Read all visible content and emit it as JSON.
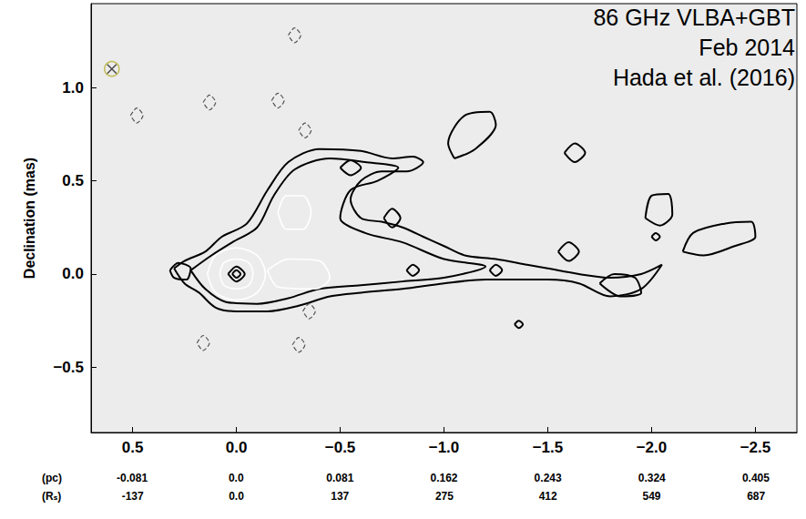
{
  "chart_data": {
    "type": "contour",
    "ylabel": "Declination (mas)",
    "annotations": [
      "86 GHz VLBA+GBT",
      "Feb 2014",
      "Hada et al. (2016)"
    ],
    "xlim": [
      0.7,
      -2.7
    ],
    "ylim": [
      -0.85,
      1.45
    ],
    "xticks": [
      {
        "value": 0.5,
        "label": "0.5"
      },
      {
        "value": 0,
        "label": "0.0"
      },
      {
        "value": -0.5,
        "label": "−0.5"
      },
      {
        "value": -1.0,
        "label": "−1.0"
      },
      {
        "value": -1.5,
        "label": "−1.5"
      },
      {
        "value": -2.0,
        "label": "−2.0"
      },
      {
        "value": -2.5,
        "label": "−2.5"
      }
    ],
    "yticks": [
      {
        "value": -0.5,
        "label": "−0.5"
      },
      {
        "value": 0,
        "label": "0.0"
      },
      {
        "value": 0.5,
        "label": "0.5"
      },
      {
        "value": 1.0,
        "label": "1.0"
      }
    ],
    "secondary_x_axes": [
      {
        "label": "(pc)",
        "xlim": [
          -0.113,
          0.437
        ],
        "ticks": [
          -0.081,
          {
            "value": 0,
            "label": "0.0"
          },
          0.081,
          0.162,
          0.243,
          0.324,
          0.405
        ]
      },
      {
        "label": "(Rₛ)",
        "xlim": [
          -192,
          741
        ],
        "ticks": [
          -137,
          {
            "value": 0,
            "label": "0.0"
          },
          137,
          275,
          412,
          549,
          687
        ]
      }
    ],
    "beam": {
      "x": 0.6,
      "y": 1.1
    },
    "series": [
      {
        "color": "#000000",
        "line_style": "solid",
        "values": [
          [
            0.3,
            0.03
          ],
          [
            0.25,
            0.07
          ],
          [
            0.15,
            0.12
          ],
          [
            0.07,
            0.2
          ],
          [
            -0.05,
            0.27
          ],
          [
            -0.15,
            0.45
          ],
          [
            -0.25,
            0.6
          ],
          [
            -0.4,
            0.67
          ],
          [
            -0.6,
            0.66
          ],
          [
            -0.75,
            0.62
          ],
          [
            -0.85,
            0.63
          ],
          [
            -0.9,
            0.6
          ],
          [
            -0.82,
            0.55
          ],
          [
            -0.7,
            0.55
          ],
          [
            -0.6,
            0.5
          ],
          [
            -0.55,
            0.4
          ],
          [
            -0.6,
            0.3
          ],
          [
            -0.7,
            0.28
          ],
          [
            -0.8,
            0.25
          ],
          [
            -0.9,
            0.2
          ],
          [
            -1.0,
            0.15
          ],
          [
            -1.1,
            0.1
          ],
          [
            -1.25,
            0.08
          ],
          [
            -1.4,
            0.05
          ],
          [
            -1.5,
            0.03
          ],
          [
            -1.65,
            0.0
          ],
          [
            -1.8,
            -0.02
          ],
          [
            -1.95,
            0.0
          ],
          [
            -2.05,
            0.05
          ],
          [
            -1.95,
            -0.08
          ],
          [
            -1.8,
            -0.12
          ],
          [
            -1.65,
            -0.05
          ],
          [
            -1.5,
            -0.03
          ],
          [
            -1.35,
            -0.03
          ],
          [
            -1.2,
            -0.03
          ],
          [
            -1.0,
            -0.05
          ],
          [
            -0.8,
            -0.08
          ],
          [
            -0.6,
            -0.1
          ],
          [
            -0.45,
            -0.12
          ],
          [
            -0.3,
            -0.17
          ],
          [
            -0.15,
            -0.2
          ],
          [
            0.0,
            -0.2
          ],
          [
            0.1,
            -0.18
          ],
          [
            0.18,
            -0.1
          ],
          [
            0.25,
            -0.05
          ],
          [
            0.3,
            0.03
          ]
        ]
      },
      {
        "color": "#000000",
        "line_style": "solid",
        "values": [
          [
            0.22,
            0.02
          ],
          [
            0.12,
            0.1
          ],
          [
            0.02,
            0.17
          ],
          [
            -0.1,
            0.25
          ],
          [
            -0.18,
            0.42
          ],
          [
            -0.28,
            0.56
          ],
          [
            -0.45,
            0.62
          ],
          [
            -0.62,
            0.6
          ],
          [
            -0.78,
            0.57
          ],
          [
            -0.68,
            0.5
          ],
          [
            -0.55,
            0.45
          ],
          [
            -0.5,
            0.3
          ],
          [
            -0.62,
            0.22
          ],
          [
            -0.8,
            0.17
          ],
          [
            -1.0,
            0.08
          ],
          [
            -1.2,
            0.04
          ],
          [
            -1.0,
            -0.02
          ],
          [
            -0.8,
            -0.04
          ],
          [
            -0.6,
            -0.06
          ],
          [
            -0.4,
            -0.08
          ],
          [
            -0.25,
            -0.13
          ],
          [
            -0.1,
            -0.16
          ],
          [
            0.05,
            -0.15
          ],
          [
            0.15,
            -0.08
          ],
          [
            0.22,
            0.02
          ]
        ]
      },
      {
        "color": "#ffffff",
        "line_style": "solid",
        "values": [
          [
            -0.2,
            0.33
          ],
          [
            -0.24,
            0.42
          ],
          [
            -0.32,
            0.42
          ],
          [
            -0.36,
            0.33
          ],
          [
            -0.32,
            0.24
          ],
          [
            -0.24,
            0.24
          ],
          [
            -0.2,
            0.33
          ]
        ]
      },
      {
        "color": "#ffffff",
        "line_style": "solid",
        "values": [
          [
            -0.15,
            0.02
          ],
          [
            -0.25,
            0.08
          ],
          [
            -0.4,
            0.07
          ],
          [
            -0.45,
            -0.02
          ],
          [
            -0.38,
            -0.08
          ],
          [
            -0.2,
            -0.07
          ],
          [
            -0.15,
            0.02
          ]
        ]
      },
      {
        "color": "#ffffff",
        "line_style": "solid",
        "values": [
          [
            0.14,
            0
          ],
          [
            0.1,
            0.1
          ],
          [
            0,
            0.14
          ],
          [
            -0.1,
            0.1
          ],
          [
            -0.14,
            0
          ],
          [
            -0.1,
            -0.1
          ],
          [
            0,
            -0.14
          ],
          [
            0.1,
            -0.1
          ],
          [
            0.14,
            0
          ]
        ]
      },
      {
        "color": "#ffffff",
        "line_style": "solid",
        "values": [
          [
            0.08,
            0
          ],
          [
            0.06,
            0.06
          ],
          [
            0,
            0.08
          ],
          [
            -0.06,
            0.06
          ],
          [
            -0.08,
            0
          ],
          [
            -0.06,
            -0.06
          ],
          [
            0,
            -0.08
          ],
          [
            0.06,
            -0.06
          ],
          [
            0.08,
            0
          ]
        ]
      },
      {
        "color": "#000000",
        "line_style": "solid",
        "values": [
          [
            0.04,
            0
          ],
          [
            0,
            0.04
          ],
          [
            -0.04,
            0
          ],
          [
            0,
            -0.04
          ],
          [
            0.04,
            0
          ]
        ]
      },
      {
        "color": "#000000",
        "line_style": "solid",
        "values": [
          [
            0.02,
            0
          ],
          [
            0,
            0.02
          ],
          [
            -0.02,
            0
          ],
          [
            0,
            -0.02
          ],
          [
            0.02,
            0
          ]
        ]
      },
      {
        "color": "#000000",
        "line_style": "solid",
        "values": [
          [
            0.32,
            0.02
          ],
          [
            0.28,
            0.06
          ],
          [
            0.22,
            0.03
          ],
          [
            0.24,
            -0.03
          ],
          [
            0.3,
            -0.02
          ],
          [
            0.32,
            0.02
          ]
        ]
      },
      {
        "color": "#000000",
        "line_style": "solid",
        "values": [
          [
            -0.5,
            0.57
          ],
          [
            -0.55,
            0.61
          ],
          [
            -0.6,
            0.57
          ],
          [
            -0.55,
            0.53
          ],
          [
            -0.5,
            0.57
          ]
        ]
      },
      {
        "color": "#000000",
        "line_style": "solid",
        "values": [
          [
            -0.71,
            0.3
          ],
          [
            -0.75,
            0.35
          ],
          [
            -0.79,
            0.3
          ],
          [
            -0.75,
            0.25
          ],
          [
            -0.71,
            0.3
          ]
        ]
      },
      {
        "color": "#000000",
        "line_style": "solid",
        "values": [
          [
            -0.82,
            0.02
          ],
          [
            -0.85,
            0.05
          ],
          [
            -0.88,
            0.02
          ],
          [
            -0.85,
            -0.01
          ],
          [
            -0.82,
            0.02
          ]
        ]
      },
      {
        "color": "#000000",
        "line_style": "solid",
        "values": [
          [
            -1.22,
            0.02
          ],
          [
            -1.25,
            0.05
          ],
          [
            -1.28,
            0.02
          ],
          [
            -1.25,
            -0.01
          ],
          [
            -1.22,
            0.02
          ]
        ]
      },
      {
        "color": "#000000",
        "line_style": "solid",
        "values": [
          [
            -1.05,
            0.62
          ],
          [
            -1.02,
            0.7
          ],
          [
            -1.1,
            0.85
          ],
          [
            -1.22,
            0.87
          ],
          [
            -1.25,
            0.8
          ],
          [
            -1.15,
            0.67
          ],
          [
            -1.05,
            0.62
          ]
        ]
      },
      {
        "color": "#000000",
        "line_style": "solid",
        "values": [
          [
            -1.58,
            0.65
          ],
          [
            -1.63,
            0.7
          ],
          [
            -1.68,
            0.65
          ],
          [
            -1.63,
            0.6
          ],
          [
            -1.58,
            0.65
          ]
        ]
      },
      {
        "color": "#000000",
        "line_style": "solid",
        "values": [
          [
            -1.55,
            0.12
          ],
          [
            -1.6,
            0.17
          ],
          [
            -1.65,
            0.12
          ],
          [
            -1.6,
            0.07
          ],
          [
            -1.55,
            0.12
          ]
        ]
      },
      {
        "color": "#000000",
        "line_style": "solid",
        "values": [
          [
            -1.97,
            0.3
          ],
          [
            -2.0,
            0.42
          ],
          [
            -2.08,
            0.43
          ],
          [
            -2.1,
            0.32
          ],
          [
            -2.04,
            0.26
          ],
          [
            -1.97,
            0.3
          ]
        ]
      },
      {
        "color": "#000000",
        "line_style": "solid",
        "values": [
          [
            -2.0,
            0.2
          ],
          [
            -2.02,
            0.22
          ],
          [
            -2.04,
            0.2
          ],
          [
            -2.02,
            0.18
          ],
          [
            -2.0,
            0.2
          ]
        ]
      },
      {
        "color": "#000000",
        "line_style": "solid",
        "values": [
          [
            -2.15,
            0.12
          ],
          [
            -2.2,
            0.22
          ],
          [
            -2.35,
            0.27
          ],
          [
            -2.48,
            0.28
          ],
          [
            -2.5,
            0.2
          ],
          [
            -2.4,
            0.15
          ],
          [
            -2.25,
            0.1
          ],
          [
            -2.15,
            0.12
          ]
        ]
      },
      {
        "color": "#000000",
        "line_style": "solid",
        "values": [
          [
            -1.75,
            -0.05
          ],
          [
            -1.82,
            0.0
          ],
          [
            -1.92,
            -0.02
          ],
          [
            -1.95,
            -0.1
          ],
          [
            -1.85,
            -0.12
          ],
          [
            -1.75,
            -0.05
          ]
        ]
      },
      {
        "color": "#000000",
        "line_style": "solid",
        "values": [
          [
            -1.34,
            -0.27
          ],
          [
            -1.36,
            -0.25
          ],
          [
            -1.38,
            -0.27
          ],
          [
            -1.36,
            -0.29
          ],
          [
            -1.34,
            -0.27
          ]
        ]
      },
      {
        "color": "#555555",
        "line_style": "dashed",
        "values": [
          [
            -0.25,
            1.28
          ],
          [
            -0.28,
            1.32
          ],
          [
            -0.31,
            1.28
          ],
          [
            -0.28,
            1.24
          ],
          [
            -0.25,
            1.28
          ]
        ]
      },
      {
        "color": "#555555",
        "line_style": "dashed",
        "values": [
          [
            0.16,
            0.92
          ],
          [
            0.13,
            0.96
          ],
          [
            0.1,
            0.92
          ],
          [
            0.13,
            0.88
          ],
          [
            0.16,
            0.92
          ]
        ]
      },
      {
        "color": "#555555",
        "line_style": "dashed",
        "values": [
          [
            -0.17,
            0.93
          ],
          [
            -0.2,
            0.97
          ],
          [
            -0.23,
            0.93
          ],
          [
            -0.2,
            0.89
          ],
          [
            -0.17,
            0.93
          ]
        ]
      },
      {
        "color": "#555555",
        "line_style": "dashed",
        "values": [
          [
            -0.3,
            0.77
          ],
          [
            -0.33,
            0.81
          ],
          [
            -0.36,
            0.77
          ],
          [
            -0.33,
            0.73
          ],
          [
            -0.3,
            0.77
          ]
        ]
      },
      {
        "color": "#555555",
        "line_style": "dashed",
        "values": [
          [
            0.19,
            -0.37
          ],
          [
            0.16,
            -0.33
          ],
          [
            0.13,
            -0.37
          ],
          [
            0.16,
            -0.41
          ],
          [
            0.19,
            -0.37
          ]
        ]
      },
      {
        "color": "#555555",
        "line_style": "dashed",
        "values": [
          [
            -0.27,
            -0.38
          ],
          [
            -0.3,
            -0.34
          ],
          [
            -0.33,
            -0.38
          ],
          [
            -0.3,
            -0.42
          ],
          [
            -0.27,
            -0.38
          ]
        ]
      },
      {
        "color": "#555555",
        "line_style": "dashed",
        "values": [
          [
            -0.32,
            -0.2
          ],
          [
            -0.35,
            -0.16
          ],
          [
            -0.38,
            -0.2
          ],
          [
            -0.35,
            -0.24
          ],
          [
            -0.32,
            -0.2
          ]
        ]
      },
      {
        "color": "#555555",
        "line_style": "dashed",
        "values": [
          [
            0.51,
            0.85
          ],
          [
            0.48,
            0.89
          ],
          [
            0.45,
            0.85
          ],
          [
            0.48,
            0.81
          ],
          [
            0.51,
            0.85
          ]
        ]
      }
    ]
  }
}
